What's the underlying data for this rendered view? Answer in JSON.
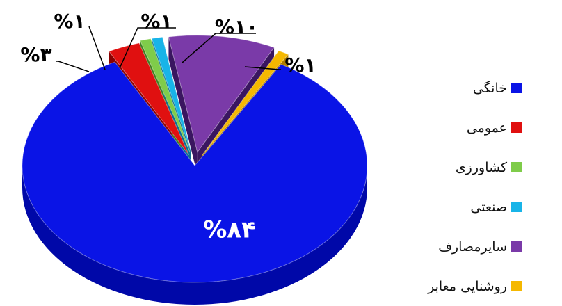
{
  "chart_data": {
    "type": "pie",
    "style": "3d-exploded",
    "slices": [
      {
        "label": "خانگی",
        "value": 84,
        "data_label": "%۸۴",
        "color": "#0a14e6",
        "side_color": "#0008a8"
      },
      {
        "label": "عمومی",
        "value": 3,
        "data_label": "%۳",
        "color": "#e01010",
        "side_color": "#8a0000"
      },
      {
        "label": "کشاورزی",
        "value": 1,
        "data_label": "%۱",
        "color": "#7fcc4a",
        "side_color": "#3f8020"
      },
      {
        "label": "صنعتی",
        "value": 1,
        "data_label": "%۱",
        "color": "#18b4e8",
        "side_color": "#0a6e90"
      },
      {
        "label": "سایرمصارف",
        "value": 10,
        "data_label": "%۱۰",
        "color": "#7a3aa8",
        "side_color": "#3a1660"
      },
      {
        "label": "روشنایی معابر",
        "value": 1,
        "data_label": "%۱",
        "color": "#f5b800",
        "side_color": "#b07e00"
      }
    ],
    "legend_position": "right"
  }
}
